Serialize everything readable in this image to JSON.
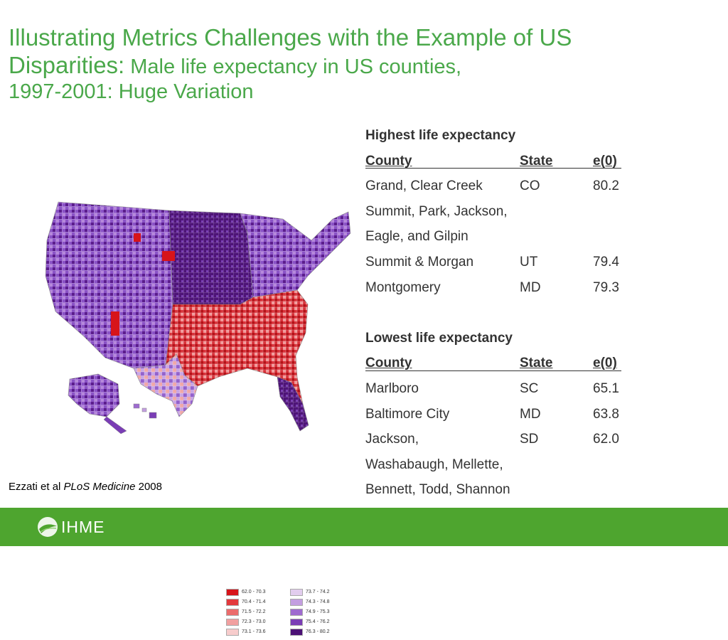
{
  "title": {
    "line1": "Illustrating  Metrics Challenges with the Example of US",
    "line2_big": "Disparities:",
    "line2_small": " Male life expectancy in US counties,",
    "line3": "1997-2001: Huge Variation"
  },
  "legend": {
    "items": [
      {
        "label": "62.0 - 70.3",
        "color": "#d7141a"
      },
      {
        "label": "70.4 - 71.4",
        "color": "#e2393d"
      },
      {
        "label": "71.5 - 72.2",
        "color": "#eb6c6c"
      },
      {
        "label": "72.3 - 73.0",
        "color": "#f1a0a0"
      },
      {
        "label": "73.1 - 73.6",
        "color": "#f7cccc"
      },
      {
        "label": "73.7 - 74.2",
        "color": "#e2cdee"
      },
      {
        "label": "74.3 - 74.8",
        "color": "#c39ee0"
      },
      {
        "label": "74.9 - 75.3",
        "color": "#9e6acf"
      },
      {
        "label": "75.4 - 76.2",
        "color": "#7a3db5"
      },
      {
        "label": "76.3 - 80.2",
        "color": "#4b1175"
      }
    ]
  },
  "citation": {
    "prefix": "Ezzati et al ",
    "journal": "PLoS Medicine",
    "year": " 2008"
  },
  "highest": {
    "heading": "Highest life expectancy",
    "columns": {
      "county": "County",
      "state": "State",
      "e0": "e(0)"
    },
    "rows": [
      {
        "county": "Grand, Clear Creek",
        "state": "CO",
        "e0": "80.2"
      },
      {
        "county": "Summit, Park, Jackson,",
        "state": "",
        "e0": ""
      },
      {
        "county": "Eagle, and Gilpin",
        "state": "",
        "e0": ""
      },
      {
        "county": "Summit & Morgan",
        "state": "UT",
        "e0": "79.4"
      },
      {
        "county": "Montgomery",
        "state": "MD",
        "e0": "79.3"
      }
    ]
  },
  "lowest": {
    "heading": "Lowest life expectancy",
    "columns": {
      "county": "County",
      "state": "State",
      "e0": "e(0)"
    },
    "rows": [
      {
        "county": "Marlboro",
        "state": "SC",
        "e0": "65.1"
      },
      {
        "county": "Baltimore City",
        "state": "MD",
        "e0": "63.8"
      },
      {
        "county": "Jackson,",
        "state": "SD",
        "e0": "62.0"
      },
      {
        "county": "Washabaugh, Mellette,",
        "state": "",
        "e0": ""
      },
      {
        "county": "Bennett, Todd, Shannon",
        "state": "",
        "e0": ""
      }
    ]
  },
  "footer": {
    "logo_text": "IHME",
    "logo_icon": "ihme-leaf-icon"
  }
}
